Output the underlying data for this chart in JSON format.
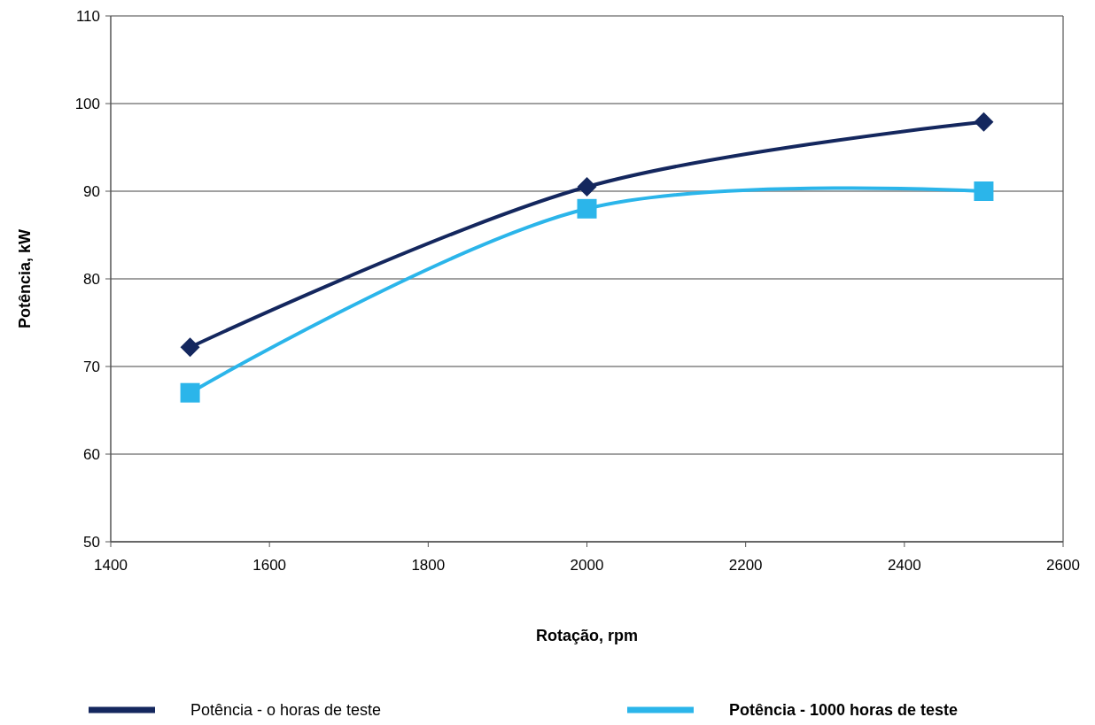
{
  "chart_data": {
    "type": "line",
    "xlabel": "Rotação, rpm",
    "ylabel": "Potência,  kW",
    "x": [
      1500,
      2000,
      2500
    ],
    "series": [
      {
        "name": "Potência  - o horas de teste",
        "color": "#14275e",
        "marker": "diamond",
        "values": [
          72.2,
          90.5,
          97.9
        ]
      },
      {
        "name": "Potência - 1000 horas de teste",
        "color": "#2bb5ea",
        "marker": "square",
        "values": [
          67,
          88,
          90
        ]
      }
    ],
    "xlim": [
      1400,
      2600
    ],
    "xticks": [
      1400,
      1600,
      1800,
      2000,
      2200,
      2400,
      2600
    ],
    "ylim": [
      50,
      110
    ],
    "yticks": [
      50,
      60,
      70,
      80,
      90,
      100,
      110
    ],
    "grid": "y",
    "legend": "bottom",
    "line_style": "solid"
  }
}
